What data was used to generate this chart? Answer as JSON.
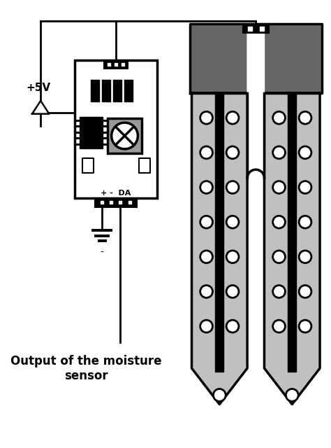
{
  "bg_color": "#ffffff",
  "line_color": "#000000",
  "dark_gray": "#666666",
  "light_gray": "#c0c0c0",
  "sensor_gray": "#999999",
  "title_text": "Output of the moisture\nsensor",
  "title_fontsize": 12,
  "plus5v_text": "+5V",
  "pin_label": "+ -  DA",
  "lw_thick": 2.5,
  "lw_wire": 2.0
}
